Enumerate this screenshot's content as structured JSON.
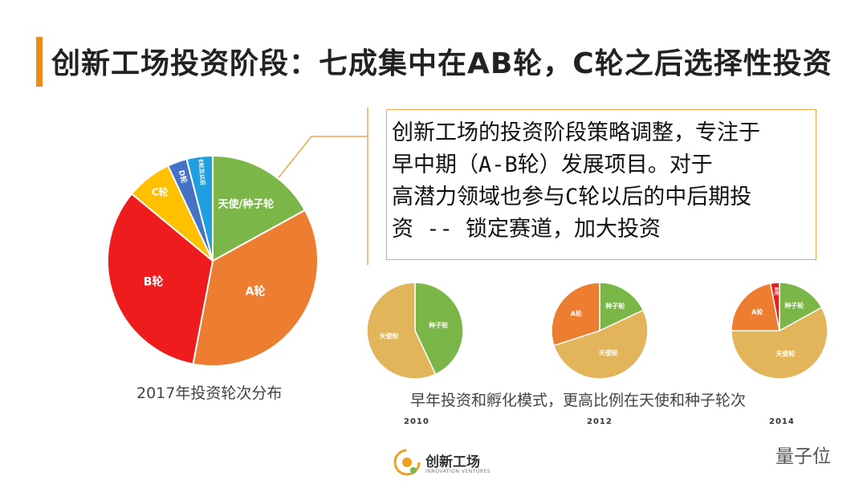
{
  "title": "创新工场投资阶段：七成集中在AB轮，C轮之后选择性投资",
  "callout": {
    "lines": [
      "创新工场的投资阶段策略调整，专注于",
      "早中期（A-B轮）发展项目。对于",
      "高潜力领域也参与C轮以后的中后期投",
      "资 -- 锁定赛道，加大投资"
    ]
  },
  "main_caption": "2017年投资轮次分布",
  "small_caption": "早年投资和孵化模式，更高比例在天使和种子轮次",
  "logo": {
    "name": "创新工场",
    "sub": "INNOVATION VENTURES"
  },
  "watermark": "量子位",
  "colors": {
    "accent": "#ef8a17",
    "green": "#7ab648",
    "orange": "#ed7d31",
    "red": "#ee1c1c",
    "yellow": "#ffc000",
    "blue": "#4472c4",
    "sky": "#1f9ee0",
    "tan": "#e3b55b"
  },
  "chart_data": [
    {
      "type": "pie",
      "title": "2017年投资轮次分布",
      "labels": [
        "天使/种子轮",
        "A轮",
        "B轮",
        "C轮",
        "D轮",
        "E轮及以后"
      ],
      "values": [
        17,
        36,
        33,
        7,
        3,
        4
      ]
    },
    {
      "type": "pie",
      "title": "2010",
      "labels": [
        "种子轮",
        "天使轮"
      ],
      "values": [
        43,
        57
      ]
    },
    {
      "type": "pie",
      "title": "2012",
      "labels": [
        "种子轮",
        "天使轮",
        "A轮"
      ],
      "values": [
        18,
        52,
        30
      ]
    },
    {
      "type": "pie",
      "title": "2014",
      "labels": [
        "种子轮",
        "天使轮",
        "A轮",
        "B轮"
      ],
      "values": [
        17,
        58,
        22,
        3
      ]
    }
  ]
}
